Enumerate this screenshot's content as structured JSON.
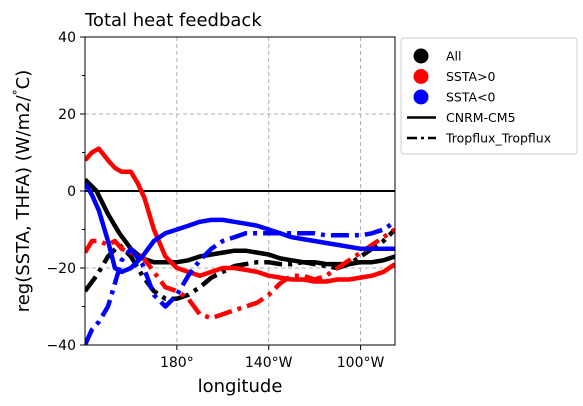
{
  "chart_data": {
    "type": "line",
    "title": "Total heat feedback",
    "xlabel": "longitude",
    "ylabel": "reg(SSTA, THFA) (W/m2/$^\\circ$C)",
    "ylabel_parts": {
      "main": "reg(SSTA, THFA) (W/m2/",
      "deg": "°",
      "end": "C)"
    },
    "xlim": [
      140,
      275
    ],
    "ylim": [
      -40,
      40
    ],
    "grid": true,
    "xticks": [
      {
        "value": 180,
        "label": "180°"
      },
      {
        "value": 220,
        "label": "140°W"
      },
      {
        "value": 260,
        "label": "100°W"
      }
    ],
    "yticks": [
      {
        "value": -40,
        "label": "−40"
      },
      {
        "value": -20,
        "label": "−20"
      },
      {
        "value": 0,
        "label": "0"
      },
      {
        "value": 20,
        "label": "20"
      },
      {
        "value": 40,
        "label": "40"
      }
    ],
    "reference_line": 0,
    "legend": {
      "position": "outside-right-top",
      "entries": [
        {
          "label": "All",
          "marker": "circle",
          "color": "#000000"
        },
        {
          "label": "SSTA>0",
          "marker": "circle",
          "color": "#ff0000"
        },
        {
          "label": "SSTA<0",
          "marker": "circle",
          "color": "#0000ff"
        },
        {
          "label": "CNRM-CM5",
          "line": "solid",
          "color": "#000000"
        },
        {
          "label": "Tropflux_Tropflux",
          "line": "dashdot",
          "color": "#000000"
        }
      ]
    },
    "series": [
      {
        "group": "All",
        "source": "CNRM-CM5",
        "color": "#000000",
        "style": "solid",
        "x": [
          140,
          145,
          150,
          155,
          160,
          165,
          170,
          175,
          180,
          185,
          190,
          195,
          200,
          205,
          210,
          215,
          220,
          225,
          230,
          235,
          240,
          245,
          250,
          255,
          260,
          265,
          270,
          275
        ],
        "y": [
          3,
          0,
          -6,
          -11,
          -15,
          -17.5,
          -18.5,
          -18.5,
          -18.5,
          -18,
          -17,
          -16.5,
          -16,
          -15.5,
          -15.5,
          -16,
          -16.5,
          -17.5,
          -18,
          -18.5,
          -18.5,
          -19,
          -19,
          -19,
          -18.5,
          -18.5,
          -18,
          -17
        ]
      },
      {
        "group": "All",
        "source": "Tropflux_Tropflux",
        "color": "#000000",
        "style": "dashdot",
        "x": [
          140,
          145,
          150,
          155,
          160,
          165,
          170,
          175,
          180,
          185,
          190,
          195,
          200,
          205,
          210,
          215,
          220,
          225,
          230,
          235,
          240,
          245,
          250,
          255,
          260,
          265,
          270,
          275
        ],
        "y": [
          -26,
          -22,
          -17,
          -14,
          -17,
          -22,
          -26,
          -28,
          -28,
          -27,
          -25,
          -22.5,
          -21,
          -19.5,
          -19,
          -18.5,
          -18.5,
          -19,
          -19,
          -18.5,
          -19,
          -19.5,
          -20,
          -19,
          -17,
          -15,
          -13,
          -10
        ]
      },
      {
        "group": "SSTA>0",
        "source": "CNRM-CM5",
        "color": "#ff0000",
        "style": "solid",
        "x": [
          140,
          143,
          146,
          150,
          153,
          156,
          160,
          163,
          166,
          170,
          175,
          180,
          185,
          190,
          195,
          200,
          205,
          210,
          215,
          220,
          225,
          230,
          235,
          240,
          245,
          250,
          255,
          260,
          265,
          270,
          275
        ],
        "y": [
          8,
          10,
          11,
          8,
          6,
          5,
          5,
          2,
          -2,
          -10,
          -17,
          -20,
          -21,
          -22,
          -21,
          -20,
          -20,
          -20.5,
          -21,
          -22,
          -22.5,
          -23,
          -23,
          -23.5,
          -23.5,
          -23,
          -23,
          -22.5,
          -22,
          -21,
          -19
        ]
      },
      {
        "group": "SSTA>0",
        "source": "Tropflux_Tropflux",
        "color": "#ff0000",
        "style": "dashdot",
        "x": [
          140,
          143,
          146,
          150,
          153,
          156,
          160,
          165,
          170,
          175,
          180,
          185,
          190,
          195,
          200,
          205,
          210,
          215,
          220,
          225,
          230,
          235,
          240,
          245,
          250,
          255,
          260,
          265,
          270,
          275
        ],
        "y": [
          -16,
          -13,
          -13,
          -14,
          -13,
          -15,
          -16,
          -17,
          -21,
          -25,
          -26,
          -28,
          -32,
          -33,
          -32,
          -31,
          -30,
          -29,
          -27,
          -24,
          -22,
          -22,
          -23,
          -22,
          -20,
          -18,
          -16,
          -14,
          -12,
          -10
        ]
      },
      {
        "group": "SSTA<0",
        "source": "CNRM-CM5",
        "color": "#0000ff",
        "style": "solid",
        "x": [
          140,
          143,
          146,
          150,
          153,
          156,
          160,
          165,
          170,
          175,
          180,
          185,
          190,
          195,
          200,
          205,
          210,
          215,
          220,
          225,
          230,
          235,
          240,
          245,
          250,
          255,
          260,
          265,
          270,
          275
        ],
        "y": [
          2,
          -1,
          -5,
          -13,
          -20,
          -21,
          -20,
          -17,
          -13,
          -11,
          -10,
          -9,
          -8,
          -7.5,
          -7.5,
          -8,
          -8.5,
          -9,
          -10,
          -11,
          -12,
          -12.5,
          -13,
          -13.5,
          -14,
          -14.5,
          -15,
          -15,
          -15,
          -15
        ]
      },
      {
        "group": "SSTA<0",
        "source": "Tropflux_Tropflux",
        "color": "#0000ff",
        "style": "dashdot",
        "x": [
          140,
          143,
          146,
          150,
          153,
          156,
          160,
          165,
          170,
          175,
          180,
          185,
          190,
          195,
          200,
          205,
          210,
          215,
          220,
          225,
          230,
          235,
          240,
          245,
          250,
          255,
          260,
          265,
          270,
          275
        ],
        "y": [
          -40,
          -36,
          -34,
          -30,
          -24,
          -18,
          -15,
          -19,
          -27,
          -30,
          -27,
          -22,
          -18,
          -15,
          -13,
          -12,
          -11,
          -11,
          -11,
          -11,
          -11,
          -11,
          -11,
          -11.5,
          -11.5,
          -11.5,
          -11.5,
          -11,
          -10,
          -8
        ]
      }
    ]
  }
}
